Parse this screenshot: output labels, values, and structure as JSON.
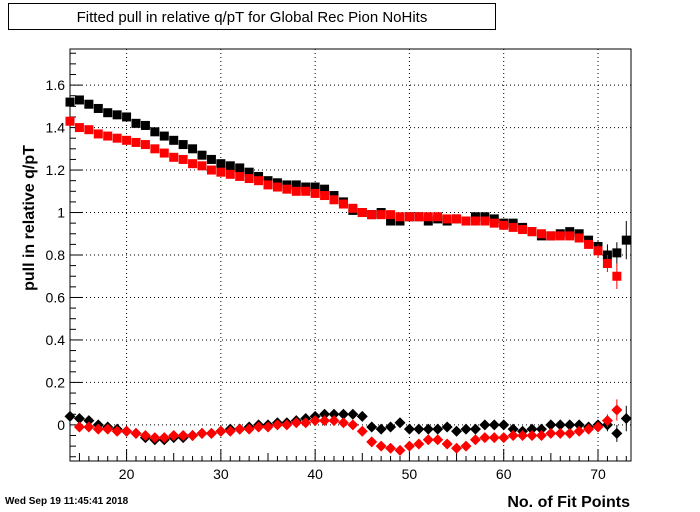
{
  "chart_data": {
    "type": "scatter",
    "title": "Fitted pull in relative q/pT for Global Rec Pion NoHits",
    "xlabel": "No. of Fit Points",
    "ylabel": "pull in relative q/pT",
    "xlim": [
      14,
      73.5
    ],
    "ylim": [
      -0.17,
      1.77
    ],
    "xticks": [
      20,
      30,
      40,
      50,
      60,
      70
    ],
    "yticks": [
      0,
      0.2,
      0.4,
      0.6,
      0.8,
      1,
      1.2,
      1.4,
      1.6
    ],
    "ytick_labels": [
      "0",
      "0.2",
      "0.4",
      "0.6",
      "0.8",
      "1",
      "1.2",
      "1.4",
      "1.6"
    ],
    "grid": true,
    "series": [
      {
        "marker": "square",
        "color": "#000000",
        "x": [
          14,
          15,
          16,
          17,
          18,
          19,
          20,
          21,
          22,
          23,
          24,
          25,
          26,
          27,
          28,
          29,
          30,
          31,
          32,
          33,
          34,
          35,
          36,
          37,
          38,
          39,
          40,
          41,
          42,
          43,
          44,
          45,
          46,
          47,
          48,
          49,
          50,
          51,
          52,
          53,
          54,
          55,
          56,
          57,
          58,
          59,
          60,
          61,
          62,
          63,
          64,
          65,
          66,
          67,
          68,
          69,
          70,
          71,
          72,
          73
        ],
        "y": [
          1.52,
          1.53,
          1.51,
          1.49,
          1.47,
          1.46,
          1.45,
          1.42,
          1.41,
          1.38,
          1.36,
          1.34,
          1.32,
          1.3,
          1.27,
          1.25,
          1.23,
          1.22,
          1.21,
          1.19,
          1.17,
          1.15,
          1.14,
          1.13,
          1.13,
          1.12,
          1.12,
          1.11,
          1.08,
          1.05,
          1.01,
          1.0,
          0.99,
          1.0,
          0.96,
          0.96,
          0.98,
          0.98,
          0.96,
          0.97,
          0.96,
          0.97,
          0.96,
          0.98,
          0.98,
          0.97,
          0.95,
          0.95,
          0.93,
          0.91,
          0.89,
          0.89,
          0.9,
          0.91,
          0.9,
          0.87,
          0.84,
          0.8,
          0.81,
          0.87
        ],
        "yerr": [
          0,
          0,
          0,
          0,
          0,
          0,
          0,
          0,
          0,
          0,
          0,
          0,
          0,
          0,
          0,
          0,
          0,
          0,
          0,
          0,
          0,
          0,
          0,
          0,
          0,
          0,
          0,
          0,
          0,
          0,
          0,
          0,
          0,
          0,
          0,
          0,
          0,
          0,
          0,
          0,
          0,
          0,
          0,
          0,
          0,
          0,
          0,
          0,
          0,
          0,
          0,
          0,
          0,
          0,
          0,
          0.02,
          0.03,
          0.05,
          0.05,
          0.09
        ]
      },
      {
        "marker": "square",
        "color": "#ff0000",
        "x": [
          14,
          15,
          16,
          17,
          18,
          19,
          20,
          21,
          22,
          23,
          24,
          25,
          26,
          27,
          28,
          29,
          30,
          31,
          32,
          33,
          34,
          35,
          36,
          37,
          38,
          39,
          40,
          41,
          42,
          43,
          44,
          45,
          46,
          47,
          48,
          49,
          50,
          51,
          52,
          53,
          54,
          55,
          56,
          57,
          58,
          59,
          60,
          61,
          62,
          63,
          64,
          65,
          66,
          67,
          68,
          69,
          70,
          71,
          72
        ],
        "y": [
          1.43,
          1.4,
          1.39,
          1.37,
          1.36,
          1.35,
          1.34,
          1.33,
          1.32,
          1.3,
          1.28,
          1.26,
          1.25,
          1.23,
          1.22,
          1.2,
          1.19,
          1.18,
          1.17,
          1.16,
          1.15,
          1.13,
          1.12,
          1.11,
          1.1,
          1.1,
          1.09,
          1.08,
          1.06,
          1.04,
          1.02,
          1.0,
          0.99,
          0.99,
          0.99,
          0.98,
          0.98,
          0.98,
          0.98,
          0.98,
          0.97,
          0.97,
          0.96,
          0.96,
          0.96,
          0.95,
          0.94,
          0.93,
          0.92,
          0.91,
          0.9,
          0.89,
          0.89,
          0.89,
          0.88,
          0.85,
          0.82,
          0.76,
          0.7
        ],
        "yerr": [
          0,
          0,
          0,
          0,
          0,
          0,
          0,
          0,
          0,
          0,
          0,
          0,
          0,
          0,
          0,
          0,
          0,
          0,
          0,
          0,
          0,
          0,
          0,
          0,
          0,
          0,
          0,
          0,
          0,
          0,
          0,
          0,
          0,
          0,
          0,
          0,
          0,
          0,
          0,
          0,
          0,
          0,
          0,
          0,
          0,
          0,
          0,
          0,
          0,
          0,
          0,
          0,
          0,
          0,
          0,
          0.02,
          0.03,
          0.04,
          0.06
        ]
      },
      {
        "marker": "diamond",
        "color": "#000000",
        "x": [
          14,
          15,
          16,
          17,
          18,
          19,
          20,
          21,
          22,
          23,
          24,
          25,
          26,
          27,
          28,
          29,
          30,
          31,
          32,
          33,
          34,
          35,
          36,
          37,
          38,
          39,
          40,
          41,
          42,
          43,
          44,
          45,
          46,
          47,
          48,
          49,
          50,
          51,
          52,
          53,
          54,
          55,
          56,
          57,
          58,
          59,
          60,
          61,
          62,
          63,
          64,
          65,
          66,
          67,
          68,
          69,
          70,
          71,
          72,
          73
        ],
        "y": [
          0.04,
          0.03,
          0.02,
          0.0,
          -0.01,
          -0.02,
          -0.03,
          -0.04,
          -0.06,
          -0.07,
          -0.07,
          -0.06,
          -0.06,
          -0.05,
          -0.04,
          -0.04,
          -0.03,
          -0.02,
          -0.02,
          -0.01,
          0.0,
          0.0,
          0.01,
          0.01,
          0.02,
          0.03,
          0.04,
          0.05,
          0.05,
          0.05,
          0.05,
          0.04,
          -0.01,
          -0.02,
          -0.01,
          0.01,
          -0.02,
          -0.02,
          -0.02,
          -0.02,
          -0.01,
          -0.03,
          -0.02,
          -0.02,
          0.0,
          0.0,
          0.0,
          -0.02,
          -0.03,
          -0.02,
          -0.02,
          0.0,
          0.0,
          0.0,
          0.0,
          -0.01,
          0.0,
          0.0,
          -0.04,
          0.03
        ],
        "yerr": [
          0,
          0,
          0,
          0,
          0,
          0,
          0,
          0,
          0,
          0,
          0,
          0,
          0,
          0,
          0,
          0,
          0,
          0,
          0,
          0,
          0,
          0,
          0,
          0,
          0,
          0,
          0,
          0,
          0,
          0,
          0,
          0,
          0,
          0,
          0,
          0,
          0,
          0,
          0,
          0,
          0,
          0,
          0,
          0,
          0,
          0,
          0,
          0,
          0,
          0,
          0,
          0,
          0,
          0,
          0,
          0.01,
          0.02,
          0.03,
          0.04,
          0.06
        ]
      },
      {
        "marker": "diamond",
        "color": "#ff0000",
        "x": [
          15,
          16,
          17,
          18,
          19,
          20,
          21,
          22,
          23,
          24,
          25,
          26,
          27,
          28,
          29,
          30,
          31,
          32,
          33,
          34,
          35,
          36,
          37,
          38,
          39,
          40,
          41,
          42,
          43,
          44,
          45,
          46,
          47,
          48,
          49,
          50,
          51,
          52,
          53,
          54,
          55,
          56,
          57,
          58,
          59,
          60,
          61,
          62,
          63,
          64,
          65,
          66,
          67,
          68,
          69,
          70,
          71,
          72
        ],
        "y": [
          -0.01,
          -0.01,
          -0.02,
          -0.02,
          -0.03,
          -0.03,
          -0.04,
          -0.05,
          -0.06,
          -0.06,
          -0.05,
          -0.05,
          -0.05,
          -0.04,
          -0.04,
          -0.03,
          -0.03,
          -0.02,
          -0.02,
          -0.01,
          -0.01,
          0.0,
          0.0,
          0.01,
          0.01,
          0.02,
          0.02,
          0.02,
          0.01,
          0.0,
          -0.03,
          -0.08,
          -0.1,
          -0.11,
          -0.12,
          -0.1,
          -0.09,
          -0.07,
          -0.07,
          -0.09,
          -0.11,
          -0.1,
          -0.07,
          -0.06,
          -0.06,
          -0.06,
          -0.05,
          -0.05,
          -0.05,
          -0.05,
          -0.04,
          -0.04,
          -0.04,
          -0.03,
          -0.02,
          -0.01,
          0.02,
          0.07
        ],
        "yerr": [
          0,
          0,
          0,
          0,
          0,
          0,
          0,
          0,
          0,
          0,
          0,
          0,
          0,
          0,
          0,
          0,
          0,
          0,
          0,
          0,
          0,
          0,
          0,
          0,
          0,
          0,
          0,
          0,
          0,
          0,
          0,
          0,
          0,
          0,
          0,
          0,
          0,
          0,
          0,
          0,
          0,
          0,
          0,
          0,
          0,
          0,
          0,
          0,
          0,
          0,
          0,
          0,
          0,
          0,
          0.01,
          0.02,
          0.03,
          0.05
        ]
      }
    ]
  },
  "footer": {
    "timestamp": "Wed Sep 19 11:45:41 2018"
  }
}
